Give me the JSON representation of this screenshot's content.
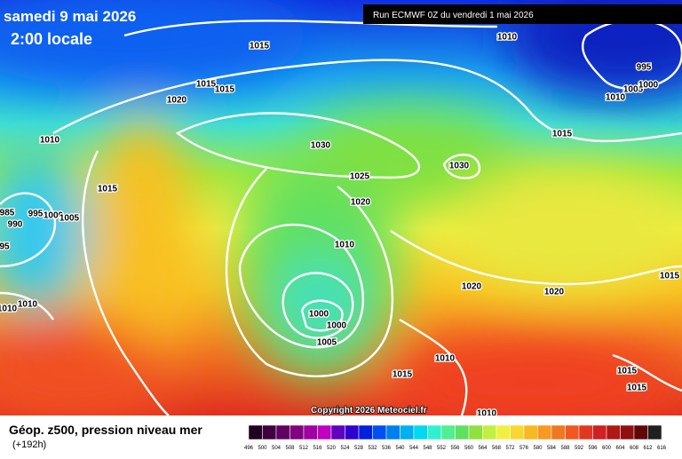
{
  "header": {
    "date": "samedi 9 mai 2026",
    "time": "2:00 locale",
    "run": "Run ECMWF 0Z du vendredi 1 mai 2026"
  },
  "copyright": "Copyright 2026 Meteociel.fr",
  "footer": {
    "title": "Géop. z500, pression niveau mer",
    "subtitle": "(+192h)"
  },
  "legend": {
    "labels": [
      "496",
      "500",
      "504",
      "508",
      "512",
      "516",
      "520",
      "524",
      "528",
      "532",
      "536",
      "540",
      "544",
      "548",
      "552",
      "556",
      "560",
      "564",
      "568",
      "572",
      "576",
      "580",
      "584",
      "588",
      "592",
      "596",
      "600",
      "604",
      "608",
      "612",
      "616"
    ]
  },
  "isobar_labels": [
    "1015",
    "1015",
    "1015",
    "1020",
    "1010",
    "995",
    "1005",
    "1000",
    "1010",
    "1015",
    "1010",
    "1030",
    "1030",
    "1015",
    "1025",
    "1020",
    "985",
    "995",
    "1000",
    "1005",
    "990",
    "95",
    "1010",
    "1020",
    "1020",
    "1015",
    "1010",
    "1010",
    "1000",
    "1000",
    "1005",
    "1010",
    "1015",
    "1015",
    "1015",
    "1010"
  ]
}
